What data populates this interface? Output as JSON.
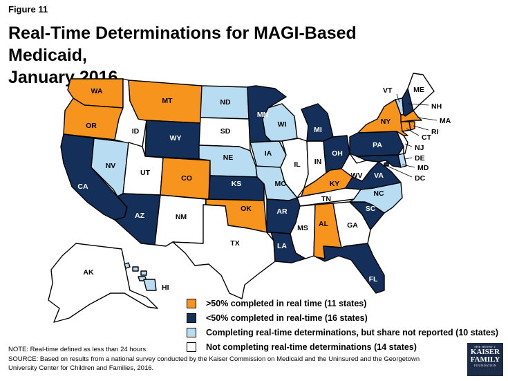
{
  "figure_label": "Figure 11",
  "title_line1": "Real-Time Determinations for MAGI-Based Medicaid,",
  "title_line2": "January 2016",
  "colors": {
    "over50": "#f7941d",
    "under50": "#14305a",
    "not_reported": "#b8dcf2",
    "not_completing": "#ffffff"
  },
  "legend": [
    {
      "key": "over50",
      "label": ">50% completed in real time (11 states)"
    },
    {
      "key": "under50",
      "label": "<50% completed in real-time (16 states)"
    },
    {
      "key": "not_reported",
      "label": "Completing real-time determinations, but share not reported (10 states)"
    },
    {
      "key": "not_completing",
      "label": "Not completing real-time determinations (14 states)"
    }
  ],
  "states": {
    "WA": "over50",
    "OR": "over50",
    "MT": "over50",
    "CO": "over50",
    "OK": "over50",
    "KY": "over50",
    "AL": "over50",
    "NY": "over50",
    "MA": "over50",
    "RI": "over50",
    "CT": "over50",
    "CA": "under50",
    "AZ": "under50",
    "WY": "under50",
    "KS": "under50",
    "MN": "under50",
    "MI": "under50",
    "OH": "under50",
    "PA": "under50",
    "VA": "under50",
    "SC": "under50",
    "AR": "under50",
    "LA": "under50",
    "FL": "under50",
    "NH": "under50",
    "MD": "under50",
    "DC": "under50",
    "NV": "not_reported",
    "ND": "not_reported",
    "NE": "not_reported",
    "IA": "not_reported",
    "WI": "not_reported",
    "MO": "not_reported",
    "NC": "not_reported",
    "VT": "not_reported",
    "DE": "not_reported",
    "HI": "not_reported",
    "ID": "not_completing",
    "UT": "not_completing",
    "SD": "not_completing",
    "NM": "not_completing",
    "TX": "not_completing",
    "IL": "not_completing",
    "IN": "not_completing",
    "WV": "not_completing",
    "TN": "not_completing",
    "MS": "not_completing",
    "GA": "not_completing",
    "ME": "not_completing",
    "NJ": "not_completing",
    "AK": "not_completing"
  },
  "note": "NOTE: Real-time defined as less than 24 hours.",
  "source_line1": "SOURCE: Based on results from a national survey conducted by the Kaiser Commission on Medicaid and the Uninsured and the Georgetown",
  "source_line2": "University Center for Children and Families, 2016.",
  "logo": {
    "line1": "THE HENRY J.",
    "line2": "KAISER",
    "line3": "FAMILY",
    "line4": "FOUNDATION"
  }
}
